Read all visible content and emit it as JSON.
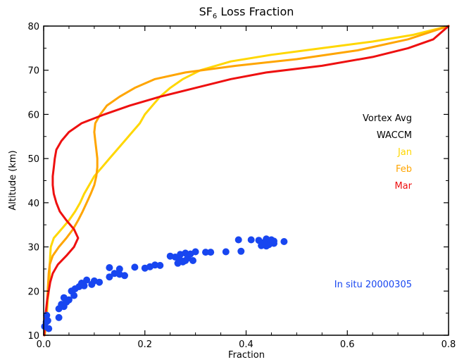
{
  "chart_data": {
    "type": "line",
    "title": {
      "main": "SF",
      "subscript": "6",
      "rest": " Loss Fraction"
    },
    "xlabel": "Fraction",
    "ylabel": "Altitude (km)",
    "xlim": [
      0.0,
      0.8
    ],
    "ylim": [
      10,
      80
    ],
    "xticks": [
      0.0,
      0.2,
      0.4,
      0.6,
      0.8
    ],
    "xtick_labels": [
      "0.0",
      "0.2",
      "0.4",
      "0.6",
      "0.8"
    ],
    "yticks": [
      10,
      20,
      30,
      40,
      50,
      60,
      70,
      80
    ],
    "ytick_labels": [
      "10",
      "20",
      "30",
      "40",
      "50",
      "60",
      "70",
      "80"
    ],
    "grid": false,
    "legend": {
      "placement": "right",
      "header": [
        "Vortex Avg",
        "WACCM"
      ],
      "entries": [
        {
          "label": "Jan",
          "color": "#FFD700"
        },
        {
          "label": "Feb",
          "color": "#FFA500"
        },
        {
          "label": "Mar",
          "color": "#EE1010"
        }
      ]
    },
    "annotation": {
      "text": "In situ 20000305",
      "color": "#1846F0"
    },
    "series": [
      {
        "name": "Jan",
        "kind": "line",
        "color": "#FFD700",
        "points": [
          [
            0.002,
            10
          ],
          [
            0.004,
            12
          ],
          [
            0.006,
            14
          ],
          [
            0.007,
            16
          ],
          [
            0.008,
            18
          ],
          [
            0.01,
            20
          ],
          [
            0.011,
            22
          ],
          [
            0.012,
            24
          ],
          [
            0.012,
            26
          ],
          [
            0.013,
            28
          ],
          [
            0.014,
            30
          ],
          [
            0.02,
            32
          ],
          [
            0.035,
            34
          ],
          [
            0.05,
            36
          ],
          [
            0.062,
            38
          ],
          [
            0.072,
            40
          ],
          [
            0.08,
            42
          ],
          [
            0.09,
            44
          ],
          [
            0.1,
            46
          ],
          [
            0.115,
            48
          ],
          [
            0.13,
            50
          ],
          [
            0.145,
            52
          ],
          [
            0.16,
            54
          ],
          [
            0.175,
            56
          ],
          [
            0.19,
            58
          ],
          [
            0.2,
            60
          ],
          [
            0.215,
            62
          ],
          [
            0.23,
            64
          ],
          [
            0.25,
            66
          ],
          [
            0.275,
            68
          ],
          [
            0.31,
            70
          ],
          [
            0.37,
            72
          ],
          [
            0.45,
            73.5
          ],
          [
            0.55,
            75
          ],
          [
            0.65,
            76.5
          ],
          [
            0.73,
            78
          ],
          [
            0.8,
            80
          ]
        ]
      },
      {
        "name": "Feb",
        "kind": "line",
        "color": "#FFA500",
        "points": [
          [
            0.002,
            10
          ],
          [
            0.004,
            12
          ],
          [
            0.005,
            14
          ],
          [
            0.006,
            16
          ],
          [
            0.007,
            18
          ],
          [
            0.008,
            20
          ],
          [
            0.009,
            22
          ],
          [
            0.01,
            24
          ],
          [
            0.012,
            26
          ],
          [
            0.018,
            28
          ],
          [
            0.03,
            30
          ],
          [
            0.045,
            32
          ],
          [
            0.058,
            34
          ],
          [
            0.068,
            36
          ],
          [
            0.077,
            38
          ],
          [
            0.085,
            40
          ],
          [
            0.093,
            42
          ],
          [
            0.1,
            44
          ],
          [
            0.104,
            46
          ],
          [
            0.106,
            48
          ],
          [
            0.106,
            50
          ],
          [
            0.104,
            52
          ],
          [
            0.102,
            54
          ],
          [
            0.1,
            56
          ],
          [
            0.102,
            58
          ],
          [
            0.112,
            60
          ],
          [
            0.125,
            62
          ],
          [
            0.15,
            64
          ],
          [
            0.18,
            66
          ],
          [
            0.22,
            68
          ],
          [
            0.28,
            69.5
          ],
          [
            0.38,
            71
          ],
          [
            0.5,
            72.5
          ],
          [
            0.62,
            74.5
          ],
          [
            0.72,
            77
          ],
          [
            0.8,
            80
          ]
        ]
      },
      {
        "name": "Mar",
        "kind": "line",
        "color": "#EE1010",
        "points": [
          [
            0.001,
            10
          ],
          [
            0.002,
            12
          ],
          [
            0.003,
            14
          ],
          [
            0.005,
            16
          ],
          [
            0.007,
            18
          ],
          [
            0.01,
            20
          ],
          [
            0.013,
            22
          ],
          [
            0.018,
            24
          ],
          [
            0.028,
            26
          ],
          [
            0.045,
            28
          ],
          [
            0.06,
            30
          ],
          [
            0.068,
            32
          ],
          [
            0.06,
            34
          ],
          [
            0.045,
            36
          ],
          [
            0.032,
            38
          ],
          [
            0.025,
            40
          ],
          [
            0.02,
            42
          ],
          [
            0.018,
            44
          ],
          [
            0.018,
            46
          ],
          [
            0.02,
            48
          ],
          [
            0.022,
            50
          ],
          [
            0.025,
            52
          ],
          [
            0.035,
            54
          ],
          [
            0.05,
            56
          ],
          [
            0.075,
            58
          ],
          [
            0.12,
            60
          ],
          [
            0.17,
            62
          ],
          [
            0.23,
            64
          ],
          [
            0.3,
            66
          ],
          [
            0.37,
            68
          ],
          [
            0.44,
            69.5
          ],
          [
            0.55,
            71
          ],
          [
            0.65,
            73
          ],
          [
            0.72,
            75
          ],
          [
            0.77,
            77
          ],
          [
            0.8,
            80
          ]
        ]
      },
      {
        "name": "In situ 20000305",
        "kind": "scatter",
        "color": "#1846F0",
        "points": [
          [
            0.005,
            13
          ],
          [
            0.008,
            13.3
          ],
          [
            0.002,
            12
          ],
          [
            0.01,
            11.5
          ],
          [
            0.006,
            14.5
          ],
          [
            0.03,
            14
          ],
          [
            0.03,
            16
          ],
          [
            0.04,
            16.5
          ],
          [
            0.035,
            17
          ],
          [
            0.045,
            17.5
          ],
          [
            0.04,
            18.5
          ],
          [
            0.05,
            18
          ],
          [
            0.06,
            19
          ],
          [
            0.055,
            20
          ],
          [
            0.062,
            20.5
          ],
          [
            0.07,
            21
          ],
          [
            0.08,
            21.2
          ],
          [
            0.075,
            21.8
          ],
          [
            0.085,
            22.5
          ],
          [
            0.1,
            22.3
          ],
          [
            0.11,
            22
          ],
          [
            0.095,
            21.5
          ],
          [
            0.13,
            23.2
          ],
          [
            0.14,
            24
          ],
          [
            0.15,
            23.8
          ],
          [
            0.16,
            23.5
          ],
          [
            0.13,
            25.3
          ],
          [
            0.15,
            25
          ],
          [
            0.18,
            25.4
          ],
          [
            0.2,
            25.2
          ],
          [
            0.21,
            25.5
          ],
          [
            0.22,
            25.9
          ],
          [
            0.23,
            25.8
          ],
          [
            0.25,
            27.9
          ],
          [
            0.26,
            27.7
          ],
          [
            0.27,
            27
          ],
          [
            0.265,
            26.3
          ],
          [
            0.275,
            26.6
          ],
          [
            0.28,
            26.9
          ],
          [
            0.285,
            27.5
          ],
          [
            0.27,
            28.3
          ],
          [
            0.28,
            28.6
          ],
          [
            0.29,
            28.4
          ],
          [
            0.295,
            26.9
          ],
          [
            0.3,
            28.9
          ],
          [
            0.32,
            28.8
          ],
          [
            0.33,
            28.8
          ],
          [
            0.36,
            28.9
          ],
          [
            0.39,
            29
          ],
          [
            0.385,
            31.6
          ],
          [
            0.41,
            31.6
          ],
          [
            0.425,
            31.5
          ],
          [
            0.43,
            30.3
          ],
          [
            0.44,
            30.2
          ],
          [
            0.44,
            31.8
          ],
          [
            0.435,
            31
          ],
          [
            0.445,
            30.5
          ],
          [
            0.45,
            31.6
          ],
          [
            0.455,
            30.8
          ],
          [
            0.455,
            31.3
          ],
          [
            0.475,
            31.2
          ]
        ]
      }
    ]
  }
}
